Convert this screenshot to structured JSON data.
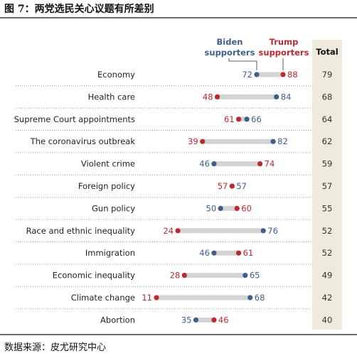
{
  "figure": {
    "title": "图 7：两党选民关心议题有所差别",
    "source": "数据来源：皮尤研究中心"
  },
  "chart_data": {
    "type": "dumbbell",
    "title": "",
    "total_label": "Total",
    "series": [
      {
        "name": "Biden supporters",
        "color": "#3d5f8c",
        "values": [
          72,
          84,
          66,
          82,
          46,
          57,
          50,
          76,
          46,
          65,
          68,
          35
        ]
      },
      {
        "name": "Trump supporters",
        "color": "#c1272d",
        "values": [
          88,
          48,
          61,
          39,
          74,
          57,
          60,
          24,
          61,
          28,
          11,
          46
        ]
      }
    ],
    "categories": [
      "Economy",
      "Health care",
      "Supreme Court appointments",
      "The coronavirus outbreak",
      "Violent crime",
      "Foreign policy",
      "Gun policy",
      "Race and ethnic inequality",
      "Immigration",
      "Economic inequality",
      "Climate change",
      "Abortion"
    ],
    "total": [
      79,
      68,
      64,
      62,
      59,
      57,
      55,
      52,
      52,
      49,
      42,
      40
    ],
    "xlim": [
      11,
      88
    ],
    "legend": "top"
  }
}
